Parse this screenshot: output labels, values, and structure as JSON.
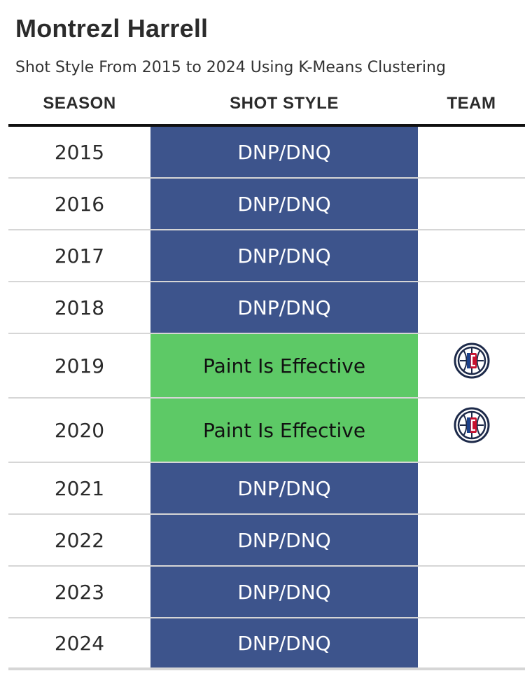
{
  "title": "Montrezl Harrell",
  "subtitle": "Shot Style From 2015 to 2024 Using K-Means Clustering",
  "columns": {
    "season": "SEASON",
    "shot_style": "SHOT STYLE",
    "team": "TEAM"
  },
  "colors": {
    "dnp": "#3d548c",
    "paint": "#5dc966",
    "dnp_text": "#ffffff",
    "paint_text": "#111111"
  },
  "chart_data": {
    "type": "table",
    "title": "Montrezl Harrell",
    "subtitle": "Shot Style From 2015 to 2024 Using K-Means Clustering",
    "columns": [
      "SEASON",
      "SHOT STYLE",
      "TEAM"
    ],
    "rows": [
      {
        "season": "2015",
        "shot_style": "DNP/DNQ",
        "category": "dnp",
        "team": "",
        "team_icon": ""
      },
      {
        "season": "2016",
        "shot_style": "DNP/DNQ",
        "category": "dnp",
        "team": "",
        "team_icon": ""
      },
      {
        "season": "2017",
        "shot_style": "DNP/DNQ",
        "category": "dnp",
        "team": "",
        "team_icon": ""
      },
      {
        "season": "2018",
        "shot_style": "DNP/DNQ",
        "category": "dnp",
        "team": "",
        "team_icon": ""
      },
      {
        "season": "2019",
        "shot_style": "Paint Is Effective",
        "category": "paint",
        "team": "",
        "team_icon": "clippers-logo-icon"
      },
      {
        "season": "2020",
        "shot_style": "Paint Is Effective",
        "category": "paint",
        "team": "",
        "team_icon": "clippers-logo-icon"
      },
      {
        "season": "2021",
        "shot_style": "DNP/DNQ",
        "category": "dnp",
        "team": "",
        "team_icon": ""
      },
      {
        "season": "2022",
        "shot_style": "DNP/DNQ",
        "category": "dnp",
        "team": "",
        "team_icon": ""
      },
      {
        "season": "2023",
        "shot_style": "DNP/DNQ",
        "category": "dnp",
        "team": "",
        "team_icon": ""
      },
      {
        "season": "2024",
        "shot_style": "DNP/DNQ",
        "category": "dnp",
        "team": "",
        "team_icon": ""
      }
    ]
  }
}
